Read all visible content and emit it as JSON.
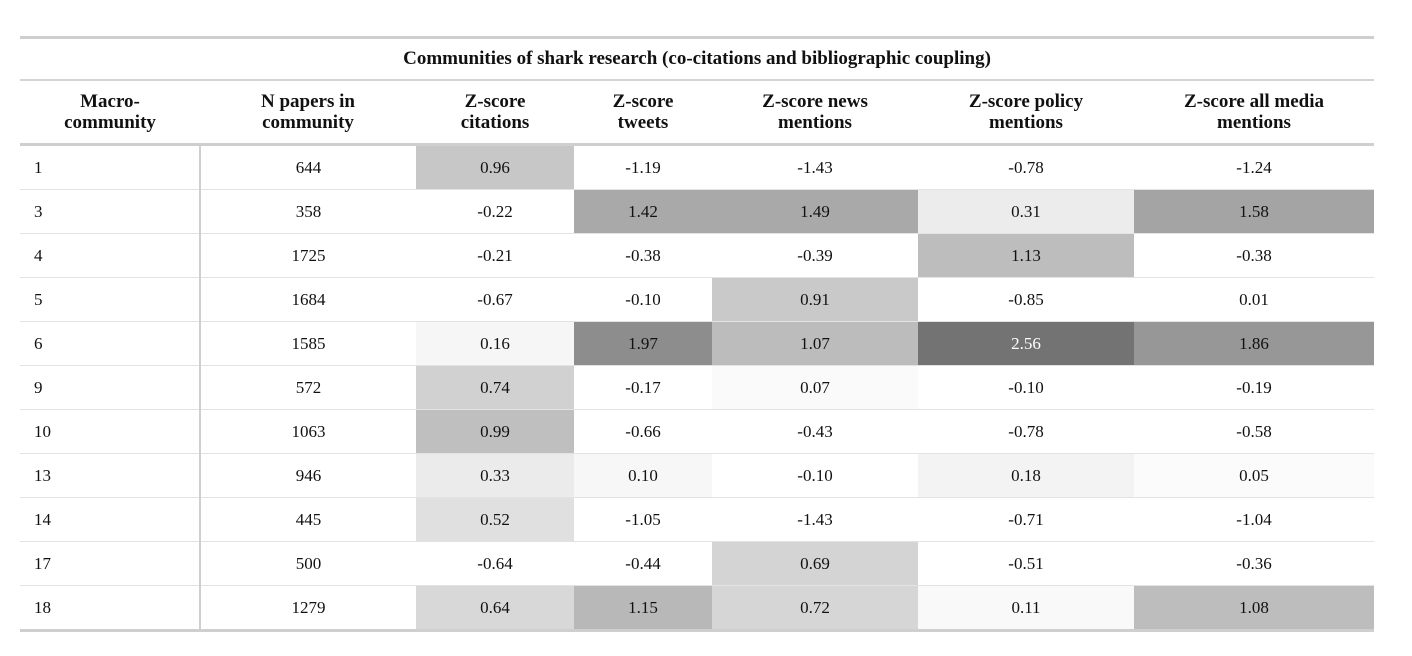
{
  "table": {
    "title": "Communities of shark research (co-citations and bibliographic coupling)",
    "columns": [
      {
        "line1": "Macro-",
        "line2": "community"
      },
      {
        "line1": "N papers in",
        "line2": "community"
      },
      {
        "line1": "Z-score",
        "line2": "citations"
      },
      {
        "line1": "Z-score",
        "line2": "tweets"
      },
      {
        "line1": "Z-score news",
        "line2": "mentions"
      },
      {
        "line1": "Z-score policy",
        "line2": "mentions"
      },
      {
        "line1": "Z-score all media",
        "line2": "mentions"
      }
    ],
    "rows": [
      {
        "cells": [
          "1",
          "644",
          "0.96",
          "-1.19",
          "-1.43",
          "-0.78",
          "-1.24"
        ],
        "shades": [
          null,
          null,
          "#c7c7c7",
          null,
          null,
          null,
          null
        ]
      },
      {
        "cells": [
          "3",
          "358",
          "-0.22",
          "1.42",
          "1.49",
          "0.31",
          "1.58"
        ],
        "shades": [
          null,
          null,
          null,
          "#a9a9a9",
          "#a9a9a9",
          "#ececec",
          "#a4a4a4"
        ]
      },
      {
        "cells": [
          "4",
          "1725",
          "-0.21",
          "-0.38",
          "-0.39",
          "1.13",
          "-0.38"
        ],
        "shades": [
          null,
          null,
          null,
          null,
          null,
          "#bdbdbd",
          null
        ]
      },
      {
        "cells": [
          "5",
          "1684",
          "-0.67",
          "-0.10",
          "0.91",
          "-0.85",
          "0.01"
        ],
        "shades": [
          null,
          null,
          null,
          null,
          "#c9c9c9",
          null,
          null
        ]
      },
      {
        "cells": [
          "6",
          "1585",
          "0.16",
          "1.97",
          "1.07",
          "2.56",
          "1.86"
        ],
        "shades": [
          null,
          null,
          "#f6f6f6",
          "#8d8d8d",
          "#bcbcbc",
          "#737373",
          "#979797"
        ]
      },
      {
        "cells": [
          "9",
          "572",
          "0.74",
          "-0.17",
          "0.07",
          "-0.10",
          "-0.19"
        ],
        "shades": [
          null,
          null,
          "#d1d1d1",
          null,
          "#fafafa",
          null,
          null
        ]
      },
      {
        "cells": [
          "10",
          "1063",
          "0.99",
          "-0.66",
          "-0.43",
          "-0.78",
          "-0.58"
        ],
        "shades": [
          null,
          null,
          "#bfbfbf",
          null,
          null,
          null,
          null
        ]
      },
      {
        "cells": [
          "13",
          "946",
          "0.33",
          "0.10",
          "-0.10",
          "0.18",
          "0.05"
        ],
        "shades": [
          null,
          null,
          "#ebebeb",
          "#f7f7f7",
          null,
          "#f3f3f3",
          "#fbfbfb"
        ]
      },
      {
        "cells": [
          "14",
          "445",
          "0.52",
          "-1.05",
          "-1.43",
          "-0.71",
          "-1.04"
        ],
        "shades": [
          null,
          null,
          "#e0e0e0",
          null,
          null,
          null,
          null
        ]
      },
      {
        "cells": [
          "17",
          "500",
          "-0.64",
          "-0.44",
          "0.69",
          "-0.51",
          "-0.36"
        ],
        "shades": [
          null,
          null,
          null,
          null,
          "#d4d4d4",
          null,
          null
        ]
      },
      {
        "cells": [
          "18",
          "1279",
          "0.64",
          "1.15",
          "0.72",
          "0.11",
          "1.08"
        ],
        "shades": [
          null,
          null,
          "#d8d8d8",
          "#b8b8b8",
          "#d6d6d6",
          "#f9f9f9",
          "#bdbdbd"
        ]
      }
    ]
  }
}
